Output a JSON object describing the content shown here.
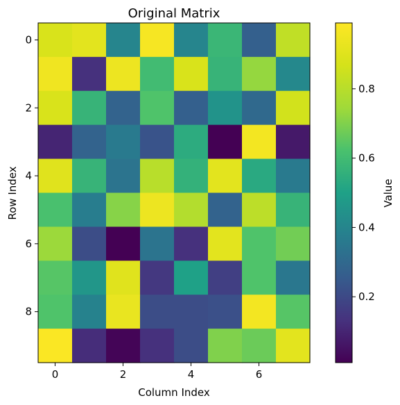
{
  "chart_data": {
    "type": "heatmap",
    "title": "Original Matrix",
    "xlabel": "Column Index",
    "ylabel": "Row Index",
    "colorbar_label": "Value",
    "colormap": "viridis",
    "value_range": [
      0.01,
      0.99
    ],
    "x_ticks": [
      0,
      2,
      4,
      6
    ],
    "y_ticks": [
      0,
      2,
      4,
      6,
      8
    ],
    "colorbar_ticks": [
      0.2,
      0.4,
      0.6,
      0.8
    ],
    "n_rows": 10,
    "n_cols": 8,
    "values": [
      [
        0.88,
        0.91,
        0.4,
        0.97,
        0.4,
        0.58,
        0.27,
        0.82
      ],
      [
        0.95,
        0.13,
        0.94,
        0.6,
        0.88,
        0.57,
        0.73,
        0.41
      ],
      [
        0.88,
        0.57,
        0.28,
        0.63,
        0.27,
        0.45,
        0.3,
        0.86
      ],
      [
        0.1,
        0.28,
        0.36,
        0.23,
        0.54,
        0.01,
        0.96,
        0.07
      ],
      [
        0.9,
        0.57,
        0.34,
        0.8,
        0.56,
        0.91,
        0.53,
        0.36
      ],
      [
        0.62,
        0.37,
        0.71,
        0.94,
        0.79,
        0.28,
        0.81,
        0.57
      ],
      [
        0.74,
        0.21,
        0.01,
        0.34,
        0.13,
        0.91,
        0.63,
        0.68
      ],
      [
        0.64,
        0.46,
        0.9,
        0.15,
        0.5,
        0.17,
        0.63,
        0.35
      ],
      [
        0.63,
        0.39,
        0.93,
        0.21,
        0.21,
        0.22,
        0.96,
        0.64
      ],
      [
        0.98,
        0.12,
        0.02,
        0.13,
        0.21,
        0.7,
        0.67,
        0.91
      ]
    ]
  }
}
